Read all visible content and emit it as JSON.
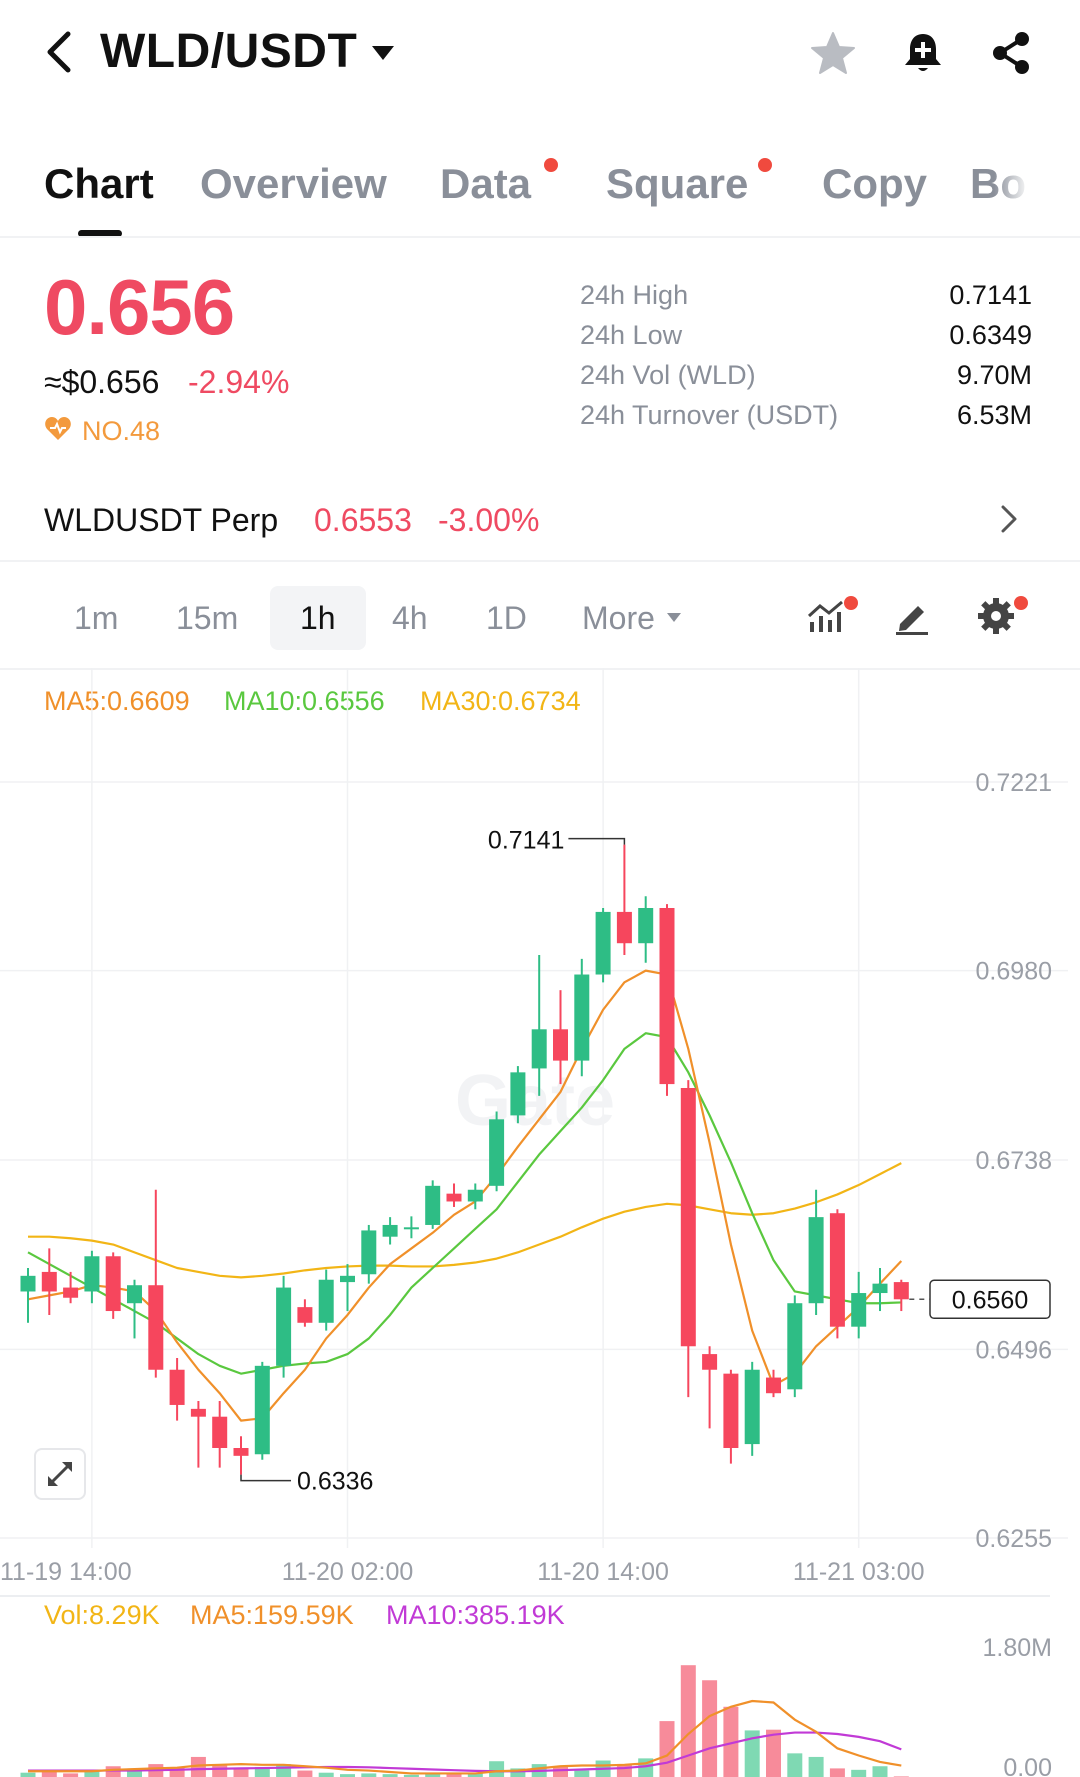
{
  "header": {
    "pair": "WLD/USDT",
    "icons": [
      "back-icon",
      "caret-down-icon",
      "star-icon",
      "bell-plus-icon",
      "share-icon"
    ]
  },
  "tabs": [
    {
      "label": "Chart",
      "active": true,
      "dot": false
    },
    {
      "label": "Overview",
      "active": false,
      "dot": false
    },
    {
      "label": "Data",
      "active": false,
      "dot": true
    },
    {
      "label": "Square",
      "active": false,
      "dot": true
    },
    {
      "label": "Copy",
      "active": false,
      "dot": false
    },
    {
      "label": "Bo",
      "active": false,
      "dot": false
    }
  ],
  "price": {
    "last": "0.656",
    "usd": "≈$0.656",
    "change": "-2.94%",
    "rank": "NO.48"
  },
  "stats": [
    {
      "label": "24h High",
      "value": "0.7141"
    },
    {
      "label": "24h Low",
      "value": "0.6349"
    },
    {
      "label": "24h Vol (WLD)",
      "value": "9.70M"
    },
    {
      "label": "24h Turnover (USDT)",
      "value": "6.53M"
    }
  ],
  "perp": {
    "name": "WLDUSDT Perp",
    "price": "0.6553",
    "change": "-3.00%"
  },
  "intervals": [
    "1m",
    "15m",
    "1h",
    "4h",
    "1D",
    "More"
  ],
  "active_interval": "1h",
  "tools": [
    "indicator-icon",
    "draw-pen-icon",
    "settings-gear-icon"
  ],
  "colors": {
    "up": "#2ebd85",
    "down": "#f6465d",
    "ma5": "#f0902a",
    "ma10": "#5ac83f",
    "ma30": "#f2b516",
    "vol_ma10": "#c13ad6"
  },
  "ma_legend": {
    "ma5": "MA5:0.6609",
    "ma10": "MA10:0.6556",
    "ma30": "MA30:0.6734"
  },
  "vol_legend": {
    "vol": "Vol:8.29K",
    "ma5": "MA5:159.59K",
    "ma10": "MA10:385.19K"
  },
  "chart_data": {
    "type": "candlestick",
    "y_ticks": [
      "0.7221",
      "0.6980",
      "0.6738",
      "0.6496",
      "0.6255"
    ],
    "ylim": [
      0.6255,
      0.7221
    ],
    "x_ticks": [
      "11-19 14:00",
      "11-20 02:00",
      "11-20 14:00",
      "11-21 03:00"
    ],
    "x_tick_index": [
      3,
      15,
      27,
      39
    ],
    "high_label": "0.7141",
    "high_index": 28,
    "low_label": "0.6336",
    "low_index": 10,
    "current_price_label": "0.6560",
    "current_price": 0.656,
    "candles": [
      {
        "o": 0.657,
        "h": 0.66,
        "l": 0.653,
        "c": 0.659
      },
      {
        "o": 0.6595,
        "h": 0.6625,
        "l": 0.654,
        "c": 0.657
      },
      {
        "o": 0.6575,
        "h": 0.6595,
        "l": 0.6555,
        "c": 0.6562
      },
      {
        "o": 0.657,
        "h": 0.6622,
        "l": 0.6555,
        "c": 0.6615
      },
      {
        "o": 0.6615,
        "h": 0.662,
        "l": 0.6535,
        "c": 0.6545
      },
      {
        "o": 0.6555,
        "h": 0.6585,
        "l": 0.651,
        "c": 0.6578
      },
      {
        "o": 0.6578,
        "h": 0.67,
        "l": 0.646,
        "c": 0.647
      },
      {
        "o": 0.647,
        "h": 0.6485,
        "l": 0.6405,
        "c": 0.6425
      },
      {
        "o": 0.642,
        "h": 0.643,
        "l": 0.6345,
        "c": 0.641
      },
      {
        "o": 0.641,
        "h": 0.643,
        "l": 0.6345,
        "c": 0.637
      },
      {
        "o": 0.637,
        "h": 0.6385,
        "l": 0.6336,
        "c": 0.636
      },
      {
        "o": 0.6362,
        "h": 0.648,
        "l": 0.6355,
        "c": 0.6475
      },
      {
        "o": 0.6475,
        "h": 0.659,
        "l": 0.646,
        "c": 0.6575
      },
      {
        "o": 0.655,
        "h": 0.656,
        "l": 0.6525,
        "c": 0.653
      },
      {
        "o": 0.653,
        "h": 0.6598,
        "l": 0.652,
        "c": 0.6585
      },
      {
        "o": 0.6582,
        "h": 0.6605,
        "l": 0.6545,
        "c": 0.659
      },
      {
        "o": 0.6592,
        "h": 0.6655,
        "l": 0.658,
        "c": 0.6648
      },
      {
        "o": 0.664,
        "h": 0.6665,
        "l": 0.663,
        "c": 0.6655
      },
      {
        "o": 0.6652,
        "h": 0.6666,
        "l": 0.6638,
        "c": 0.6652
      },
      {
        "o": 0.6655,
        "h": 0.6712,
        "l": 0.665,
        "c": 0.6705
      },
      {
        "o": 0.6695,
        "h": 0.6708,
        "l": 0.6678,
        "c": 0.6685
      },
      {
        "o": 0.6685,
        "h": 0.6708,
        "l": 0.6675,
        "c": 0.67
      },
      {
        "o": 0.6705,
        "h": 0.68,
        "l": 0.6698,
        "c": 0.679
      },
      {
        "o": 0.6795,
        "h": 0.6858,
        "l": 0.6785,
        "c": 0.685
      },
      {
        "o": 0.6855,
        "h": 0.7,
        "l": 0.682,
        "c": 0.6905
      },
      {
        "o": 0.6905,
        "h": 0.6955,
        "l": 0.6835,
        "c": 0.6865
      },
      {
        "o": 0.6865,
        "h": 0.6995,
        "l": 0.6845,
        "c": 0.6975
      },
      {
        "o": 0.6975,
        "h": 0.706,
        "l": 0.6965,
        "c": 0.7055
      },
      {
        "o": 0.7055,
        "h": 0.7141,
        "l": 0.7,
        "c": 0.7015
      },
      {
        "o": 0.7015,
        "h": 0.7075,
        "l": 0.699,
        "c": 0.706
      },
      {
        "o": 0.706,
        "h": 0.7065,
        "l": 0.682,
        "c": 0.6835
      },
      {
        "o": 0.683,
        "h": 0.684,
        "l": 0.6435,
        "c": 0.65
      },
      {
        "o": 0.649,
        "h": 0.65,
        "l": 0.6395,
        "c": 0.647
      },
      {
        "o": 0.6465,
        "h": 0.647,
        "l": 0.635,
        "c": 0.637
      },
      {
        "o": 0.6375,
        "h": 0.648,
        "l": 0.636,
        "c": 0.647
      },
      {
        "o": 0.646,
        "h": 0.647,
        "l": 0.6435,
        "c": 0.644
      },
      {
        "o": 0.6445,
        "h": 0.6565,
        "l": 0.6435,
        "c": 0.6555
      },
      {
        "o": 0.6555,
        "h": 0.67,
        "l": 0.654,
        "c": 0.6665
      },
      {
        "o": 0.667,
        "h": 0.6675,
        "l": 0.651,
        "c": 0.6525
      },
      {
        "o": 0.6525,
        "h": 0.6595,
        "l": 0.651,
        "c": 0.6568
      },
      {
        "o": 0.6568,
        "h": 0.66,
        "l": 0.6545,
        "c": 0.658
      },
      {
        "o": 0.6582,
        "h": 0.6585,
        "l": 0.6545,
        "c": 0.656
      }
    ],
    "ma5": [
      0.656,
      0.6565,
      0.657,
      0.6578,
      0.6575,
      0.657,
      0.6545,
      0.6505,
      0.647,
      0.644,
      0.6405,
      0.6408,
      0.644,
      0.647,
      0.651,
      0.654,
      0.6575,
      0.6605,
      0.6625,
      0.6645,
      0.6668,
      0.6685,
      0.6718,
      0.6755,
      0.679,
      0.6825,
      0.688,
      0.693,
      0.6965,
      0.698,
      0.6975,
      0.688,
      0.676,
      0.663,
      0.652,
      0.645,
      0.6465,
      0.65,
      0.6525,
      0.655,
      0.658,
      0.6609
    ],
    "ma10": [
      0.662,
      0.6605,
      0.659,
      0.6575,
      0.656,
      0.6545,
      0.653,
      0.651,
      0.649,
      0.6475,
      0.6465,
      0.647,
      0.6475,
      0.6478,
      0.648,
      0.649,
      0.651,
      0.654,
      0.6575,
      0.66,
      0.6625,
      0.665,
      0.6675,
      0.671,
      0.6745,
      0.6775,
      0.6805,
      0.684,
      0.688,
      0.69,
      0.6895,
      0.685,
      0.6795,
      0.6735,
      0.667,
      0.661,
      0.657,
      0.6565,
      0.656,
      0.6555,
      0.6555,
      0.6556
    ],
    "ma30": [
      0.664,
      0.664,
      0.6638,
      0.6635,
      0.663,
      0.662,
      0.661,
      0.66,
      0.6595,
      0.659,
      0.6588,
      0.659,
      0.6593,
      0.6597,
      0.66,
      0.6602,
      0.6603,
      0.6603,
      0.6602,
      0.6602,
      0.6604,
      0.6607,
      0.6612,
      0.662,
      0.663,
      0.664,
      0.6652,
      0.6663,
      0.6672,
      0.6678,
      0.6682,
      0.668,
      0.6675,
      0.667,
      0.6668,
      0.667,
      0.6676,
      0.6684,
      0.6694,
      0.6706,
      0.672,
      0.6734
    ],
    "volume": {
      "y_ticks": [
        "1.80M",
        "0.00"
      ],
      "ylim": [
        0,
        1800000
      ],
      "values": [
        60000,
        90000,
        50000,
        80000,
        150000,
        80000,
        180000,
        140000,
        280000,
        160000,
        120000,
        140000,
        180000,
        90000,
        60000,
        40000,
        50000,
        40000,
        30000,
        60000,
        40000,
        60000,
        220000,
        120000,
        180000,
        150000,
        90000,
        230000,
        180000,
        260000,
        780000,
        1560000,
        1350000,
        980000,
        650000,
        660000,
        330000,
        280000,
        120000,
        100000,
        150000,
        8290
      ],
      "ma5": [
        80000,
        80000,
        80000,
        80000,
        100000,
        110000,
        120000,
        130000,
        160000,
        170000,
        180000,
        170000,
        170000,
        150000,
        130000,
        100000,
        90000,
        70000,
        50000,
        50000,
        50000,
        50000,
        80000,
        90000,
        120000,
        150000,
        160000,
        160000,
        170000,
        190000,
        300000,
        600000,
        850000,
        980000,
        1060000,
        1040000,
        800000,
        630000,
        400000,
        300000,
        210000,
        159590
      ],
      "ma10": [
        90000,
        90000,
        90000,
        90000,
        90000,
        90000,
        95000,
        100000,
        110000,
        115000,
        120000,
        125000,
        130000,
        135000,
        140000,
        140000,
        135000,
        125000,
        115000,
        105000,
        95000,
        85000,
        80000,
        80000,
        85000,
        95000,
        105000,
        115000,
        125000,
        150000,
        200000,
        300000,
        400000,
        470000,
        540000,
        590000,
        620000,
        620000,
        600000,
        560000,
        500000,
        385190
      ]
    }
  }
}
